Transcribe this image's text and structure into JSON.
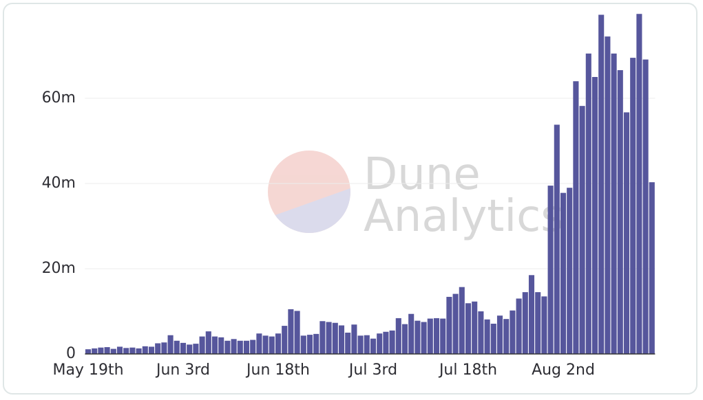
{
  "chart_data": {
    "type": "bar",
    "watermark": [
      "Dune",
      "Analytics"
    ],
    "categories": [
      "May 19th",
      null,
      null,
      null,
      null,
      null,
      null,
      null,
      null,
      null,
      null,
      null,
      null,
      null,
      null,
      "Jun 3rd",
      null,
      null,
      null,
      null,
      null,
      null,
      null,
      null,
      null,
      null,
      null,
      null,
      null,
      null,
      "Jun 18th",
      null,
      null,
      null,
      null,
      null,
      null,
      null,
      null,
      null,
      null,
      null,
      null,
      null,
      null,
      "Jul 3rd",
      null,
      null,
      null,
      null,
      null,
      null,
      null,
      null,
      null,
      null,
      null,
      null,
      null,
      null,
      "Jul 18th",
      null,
      null,
      null,
      null,
      null,
      null,
      null,
      null,
      null,
      null,
      null,
      null,
      null,
      null,
      "Aug 2nd",
      null,
      null,
      null,
      null,
      null,
      null,
      null,
      null,
      null,
      null,
      null,
      null,
      null,
      null
    ],
    "values": [
      1.1,
      1.3,
      1.5,
      1.6,
      1.2,
      1.7,
      1.4,
      1.5,
      1.3,
      1.8,
      1.7,
      2.5,
      2.7,
      4.4,
      3.1,
      2.6,
      2.2,
      2.4,
      4.1,
      5.3,
      4.1,
      3.9,
      3.1,
      3.5,
      3.1,
      3.1,
      3.3,
      4.8,
      4.3,
      4.1,
      4.8,
      6.6,
      10.5,
      10.1,
      4.3,
      4.5,
      4.7,
      7.7,
      7.5,
      7.3,
      6.7,
      5,
      6.9,
      4.3,
      4.4,
      3.6,
      4.8,
      5.2,
      5.5,
      8.4,
      7,
      9.4,
      7.8,
      7.5,
      8.3,
      8.4,
      8.3,
      13.4,
      14.1,
      15.7,
      11.9,
      12.3,
      10,
      8.1,
      7.1,
      9,
      8.2,
      10.2,
      13,
      14.5,
      18.5,
      14.5,
      13.5,
      39.5,
      53.8,
      37.8,
      39,
      64,
      58.2,
      70.5,
      65,
      79.6,
      74.5,
      70.5,
      66.6,
      56.7,
      69.5,
      79.8,
      69.1,
      40.3
    ],
    "color": "#56569c",
    "ylim": [
      0,
      80
    ],
    "yticks": [
      0,
      {
        "value": 20,
        "label": "20m"
      },
      {
        "value": 40,
        "label": "40m"
      },
      {
        "value": 60,
        "label": "60m"
      }
    ],
    "grid": true
  }
}
